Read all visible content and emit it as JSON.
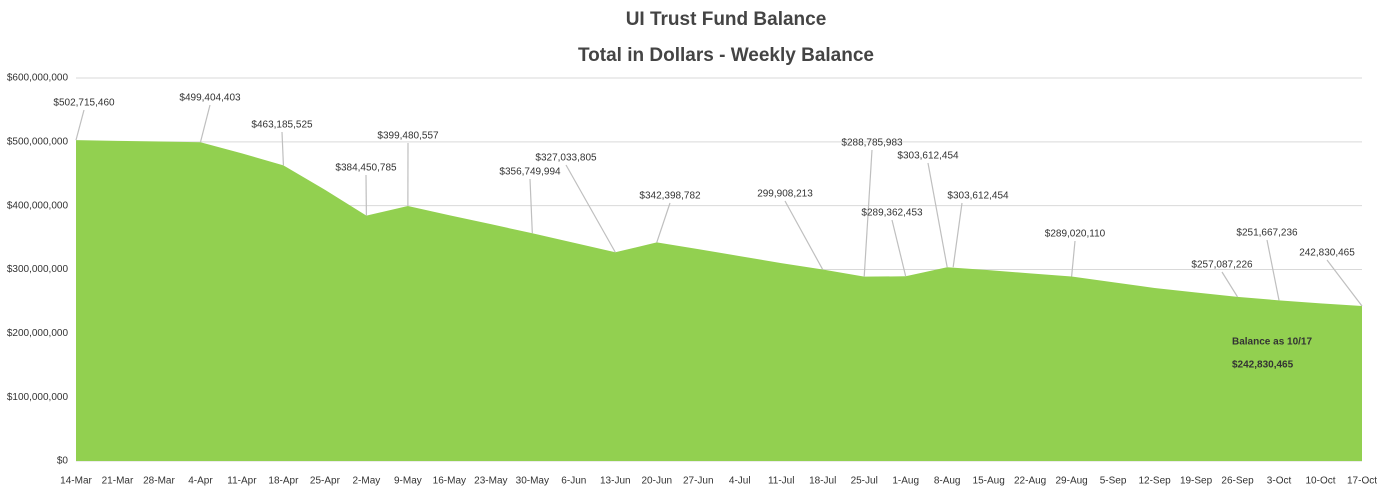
{
  "chart_data": {
    "type": "area",
    "title": "UI Trust Fund Balance",
    "subtitle": "Total in Dollars - Weekly Balance",
    "categories": [
      "14-Mar",
      "21-Mar",
      "28-Mar",
      "4-Apr",
      "11-Apr",
      "18-Apr",
      "25-Apr",
      "2-May",
      "9-May",
      "16-May",
      "23-May",
      "30-May",
      "6-Jun",
      "13-Jun",
      "20-Jun",
      "27-Jun",
      "4-Jul",
      "11-Jul",
      "18-Jul",
      "25-Jul",
      "1-Aug",
      "8-Aug",
      "15-Aug",
      "22-Aug",
      "29-Aug",
      "5-Sep",
      "12-Sep",
      "19-Sep",
      "26-Sep",
      "3-Oct",
      "10-Oct",
      "17-Oct"
    ],
    "values": [
      502715460,
      501500000,
      500500000,
      499404403,
      482000000,
      463185525,
      425000000,
      384450785,
      399480557,
      385000000,
      371000000,
      356749994,
      342000000,
      327033805,
      342398782,
      332000000,
      321000000,
      310000000,
      299908213,
      288785983,
      289362453,
      303612454,
      299000000,
      294000000,
      289020110,
      280000000,
      271000000,
      264000000,
      257087226,
      251667236,
      247000000,
      242830465
    ],
    "value_labels": [
      "$502,715,460",
      null,
      null,
      "$499,404,403",
      null,
      "$463,185,525",
      null,
      "$384,450,785",
      "$399,480,557",
      null,
      null,
      "$356,749,994",
      null,
      "$327,033,805",
      "$342,398,782",
      null,
      null,
      null,
      "299,908,213",
      "$288,785,983",
      "$289,362,453",
      "$303,612,454",
      null,
      null,
      "$289,020,110",
      null,
      null,
      null,
      "$257,087,226",
      "$251,667,236",
      null,
      "242,830,465"
    ],
    "annotations": [
      {
        "category": "8-Aug",
        "text": "$303,612,454"
      },
      {
        "category": "17-Oct",
        "text": "Balance as 10/17",
        "subtext": "$242,830,465"
      }
    ],
    "color": "#92d050",
    "ylim": [
      0,
      600000000
    ],
    "yticks": [
      {
        "value": 0,
        "label": "$0"
      },
      {
        "value": 100000000,
        "label": "$100,000,000"
      },
      {
        "value": 200000000,
        "label": "$200,000,000"
      },
      {
        "value": 300000000,
        "label": "$300,000,000"
      },
      {
        "value": 400000000,
        "label": "$400,000,000"
      },
      {
        "value": 500000000,
        "label": "$500,000,000"
      },
      {
        "value": 600000000,
        "label": "$600,000,000"
      }
    ],
    "grid": true
  }
}
